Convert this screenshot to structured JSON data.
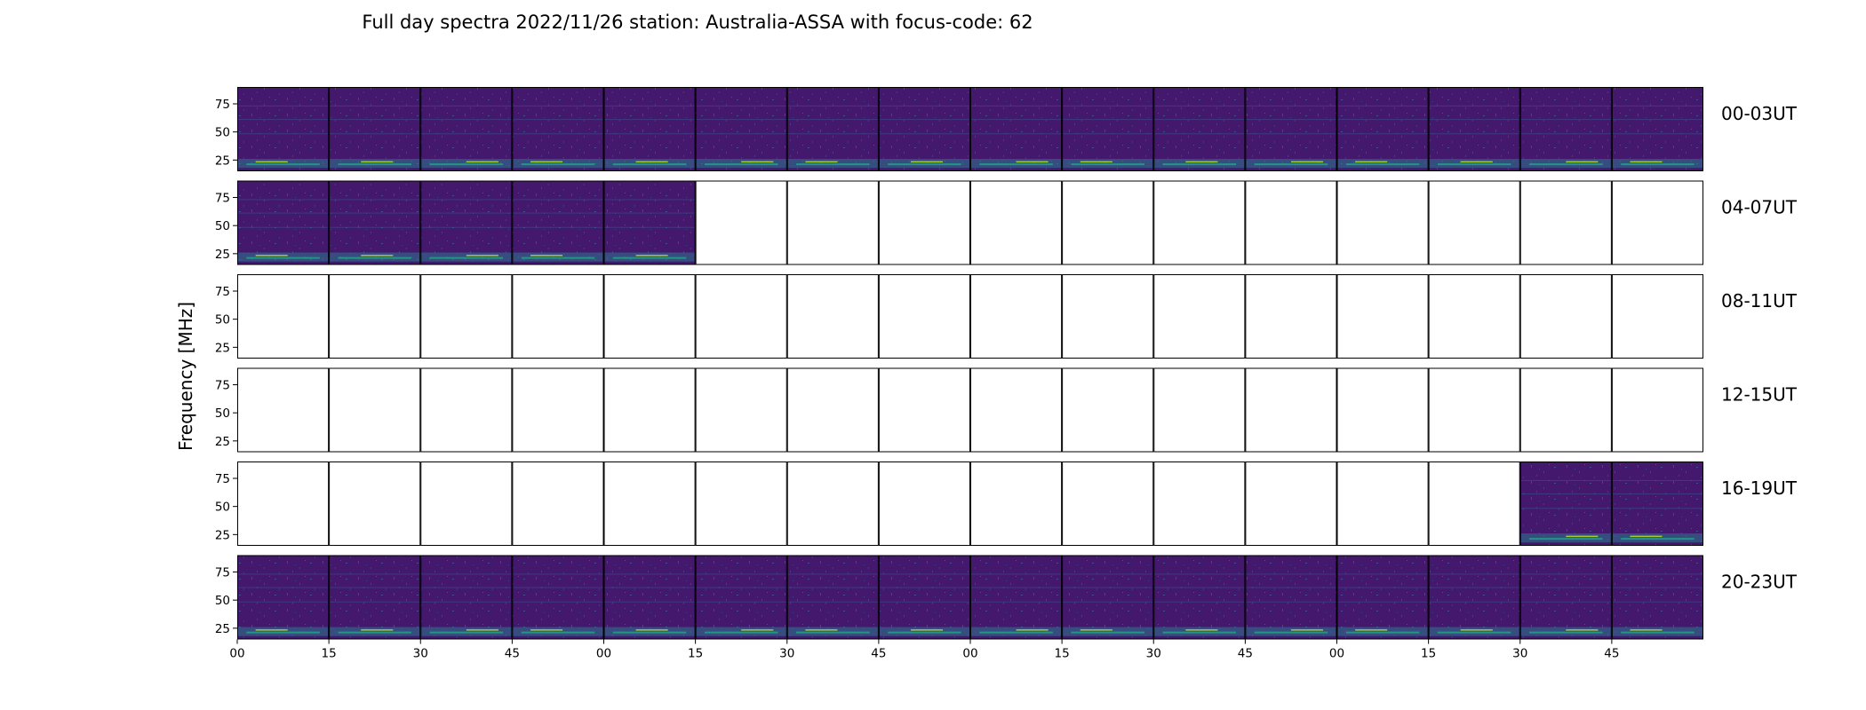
{
  "chart_data": {
    "type": "heatmap",
    "title": "Full day spectra 2022/11/26 station: Australia-ASSA with focus-code: 62",
    "ylabel": "Frequency [MHz]",
    "xlabel": "",
    "ylim": [
      15,
      90
    ],
    "yticks": [
      25,
      50,
      75
    ],
    "xticks": [
      "00",
      "15",
      "30",
      "45",
      "00",
      "15",
      "30",
      "45",
      "00",
      "15",
      "30",
      "45",
      "00",
      "15",
      "30",
      "45"
    ],
    "grid": false,
    "panels_per_row": 16,
    "rows": [
      {
        "label": "00-03UT",
        "has_data": [
          true,
          true,
          true,
          true,
          true,
          true,
          true,
          true,
          true,
          true,
          true,
          true,
          true,
          true,
          true,
          true
        ]
      },
      {
        "label": "04-07UT",
        "has_data": [
          true,
          true,
          true,
          true,
          true,
          false,
          false,
          false,
          false,
          false,
          false,
          false,
          false,
          false,
          false,
          false
        ]
      },
      {
        "label": "08-11UT",
        "has_data": [
          false,
          false,
          false,
          false,
          false,
          false,
          false,
          false,
          false,
          false,
          false,
          false,
          false,
          false,
          false,
          false
        ]
      },
      {
        "label": "12-15UT",
        "has_data": [
          false,
          false,
          false,
          false,
          false,
          false,
          false,
          false,
          false,
          false,
          false,
          false,
          false,
          false,
          false,
          false
        ]
      },
      {
        "label": "16-19UT",
        "has_data": [
          false,
          false,
          false,
          false,
          false,
          false,
          false,
          false,
          false,
          false,
          false,
          false,
          false,
          false,
          true,
          true
        ]
      },
      {
        "label": "20-23UT",
        "has_data": [
          true,
          true,
          true,
          true,
          true,
          true,
          true,
          true,
          true,
          true,
          true,
          true,
          true,
          true,
          true,
          true
        ]
      }
    ],
    "colormap": {
      "low": "#440154",
      "mid": "#21918c",
      "high": "#fde725"
    }
  }
}
